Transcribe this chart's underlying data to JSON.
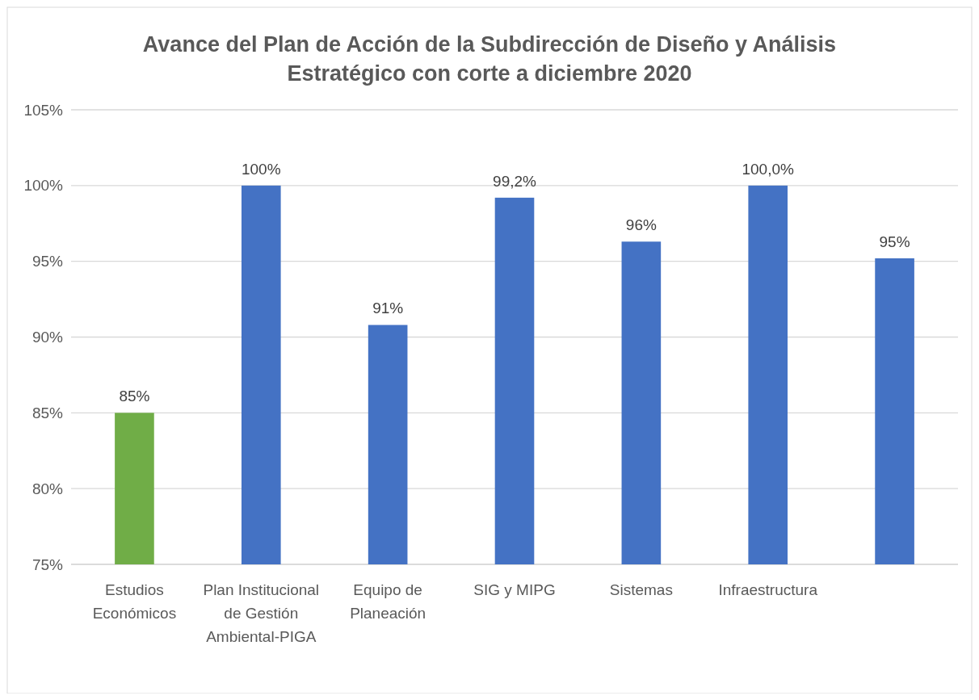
{
  "chart_data": {
    "type": "bar",
    "title": "Avance del Plan de Acción de la Subdirección de Diseño y Análisis Estratégico con corte a diciembre 2020",
    "categories": [
      "Estudios Económicos",
      "Plan Institucional de Gestión Ambiental-PIGA",
      "Equipo de Planeación",
      "SIG y MIPG",
      "Sistemas",
      "Infraestructura",
      null
    ],
    "values": [
      85,
      100,
      90.8,
      99.2,
      96.3,
      100,
      95.2
    ],
    "value_labels": [
      "85%",
      "100%",
      "91%",
      "99,2%",
      "96%",
      "100,0%",
      "95%"
    ],
    "colors": [
      "#70ad47",
      "#4472c4",
      "#4472c4",
      "#4472c4",
      "#4472c4",
      "#4472c4",
      "#4472c4"
    ],
    "ylim": [
      75,
      105
    ],
    "yticks": [
      {
        "value": 75,
        "label": "75%"
      },
      {
        "value": 80,
        "label": "80%"
      },
      {
        "value": 85,
        "label": "85%"
      },
      {
        "value": 90,
        "label": "90%"
      },
      {
        "value": 95,
        "label": "95%"
      },
      {
        "value": 100,
        "label": "100%"
      },
      {
        "value": 105,
        "label": "105%"
      }
    ],
    "grid": "y"
  }
}
